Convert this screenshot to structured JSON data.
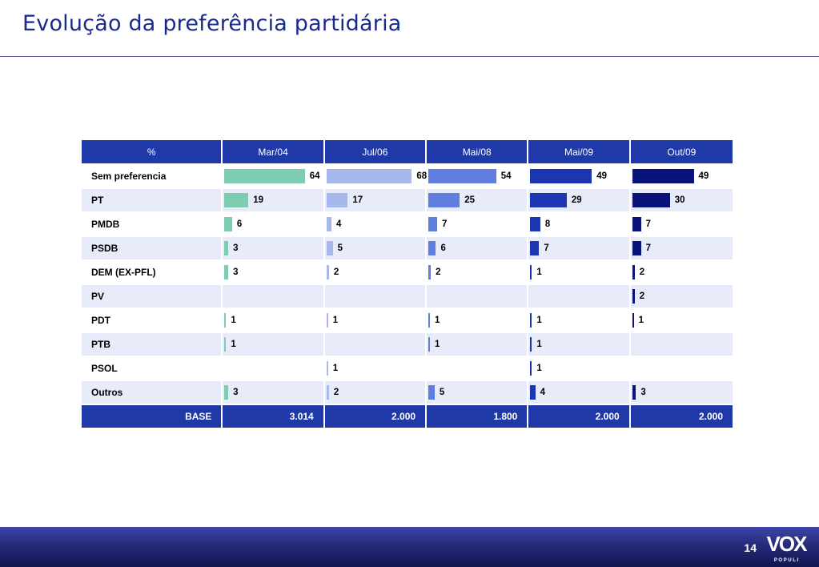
{
  "title": "Evolução da preferência partidária",
  "page_number": "14",
  "logo": {
    "text": "VOX",
    "subtext": "P O P U L I"
  },
  "colors": {
    "header_bg": "#1f3aa8",
    "row_alt": "#e8ecfa",
    "series": [
      "#7ecdb0",
      "#a6b8ec",
      "#5f7ee0",
      "#1c35b0",
      "#0a137a"
    ]
  },
  "chart_data": {
    "type": "table",
    "header_label": "%",
    "columns": [
      "Mar/04",
      "Jul/06",
      "Mai/08",
      "Mai/09",
      "Out/09"
    ],
    "rows": [
      {
        "label": "Sem preferencia",
        "values": [
          64,
          68,
          54,
          49,
          49
        ]
      },
      {
        "label": "PT",
        "values": [
          19,
          17,
          25,
          29,
          30
        ]
      },
      {
        "label": "PMDB",
        "values": [
          6,
          4,
          7,
          8,
          7
        ]
      },
      {
        "label": "PSDB",
        "values": [
          3,
          5,
          6,
          7,
          7
        ]
      },
      {
        "label": "DEM (EX-PFL)",
        "values": [
          3,
          2,
          2,
          1,
          2
        ]
      },
      {
        "label": "PV",
        "values": [
          null,
          null,
          null,
          null,
          2
        ]
      },
      {
        "label": "PDT",
        "values": [
          1,
          1,
          1,
          1,
          1
        ]
      },
      {
        "label": "PTB",
        "values": [
          1,
          null,
          1,
          1,
          null
        ]
      },
      {
        "label": "PSOL",
        "values": [
          null,
          1,
          null,
          1,
          null
        ]
      },
      {
        "label": "Outros",
        "values": [
          3,
          2,
          5,
          4,
          3
        ]
      }
    ],
    "base_label": "BASE",
    "base_values": [
      "3.014",
      "2.000",
      "1.800",
      "2.000",
      "2.000"
    ],
    "value_max": 100
  }
}
